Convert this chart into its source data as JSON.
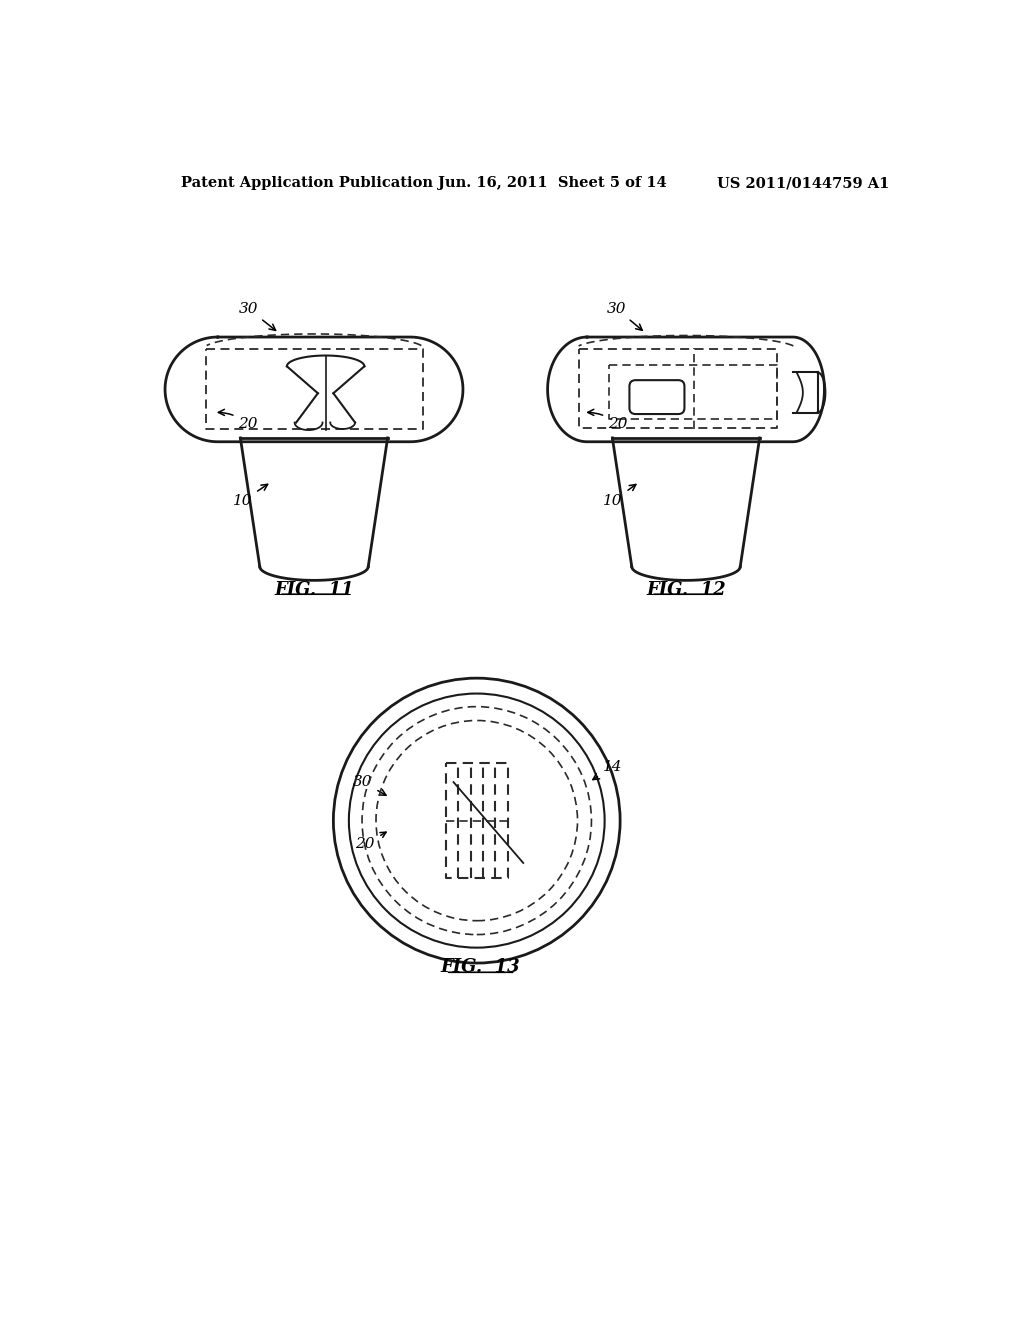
{
  "background_color": "#ffffff",
  "header_left": "Patent Application Publication",
  "header_center": "Jun. 16, 2011  Sheet 5 of 14",
  "header_right": "US 2011/0144759 A1",
  "header_fontsize": 10.5,
  "fig11_caption": "FIG.  11",
  "fig12_caption": "FIG.  12",
  "fig13_caption": "FIG.  13",
  "line_color": "#1a1a1a",
  "dashed_color": "#2a2a2a"
}
